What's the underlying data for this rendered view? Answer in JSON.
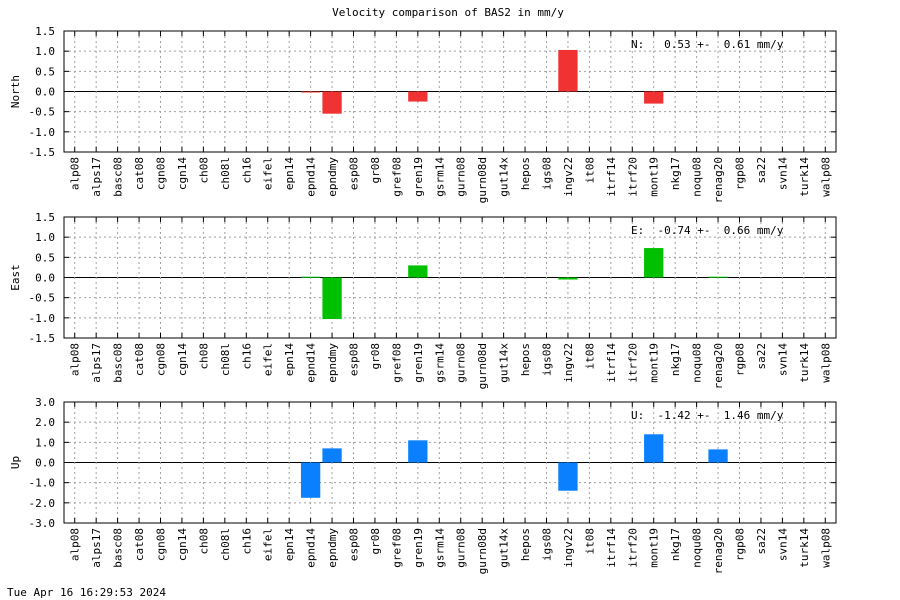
{
  "title": "Velocity comparison of BAS2 in mm/y",
  "footer": "Tue Apr 16 16:29:53 2024",
  "chart_data": [
    {
      "type": "bar",
      "ylabel": "North",
      "color": "#f03232",
      "categories": [
        "alp08",
        "alps17",
        "basc08",
        "cat08",
        "cgn08",
        "cgn14",
        "ch08",
        "ch08l",
        "ch16",
        "eifel",
        "epn14",
        "epnd14",
        "epndmy",
        "esp08",
        "gr08",
        "gref08",
        "gren19",
        "gsrm14",
        "gurn08",
        "gurn08d",
        "gut14x",
        "hepos",
        "igs08",
        "ingv22",
        "it08",
        "itrf14",
        "itrf20",
        "mont19",
        "nkg17",
        "noqu08",
        "renag20",
        "rgp08",
        "sa22",
        "svn14",
        "turk14",
        "walp08"
      ],
      "values": [
        null,
        null,
        null,
        null,
        null,
        null,
        null,
        null,
        null,
        null,
        null,
        -0.02,
        -0.55,
        null,
        null,
        null,
        -0.25,
        null,
        null,
        null,
        null,
        null,
        null,
        1.03,
        null,
        null,
        null,
        -0.3,
        null,
        null,
        null,
        null,
        null,
        null,
        null,
        null
      ],
      "ylim": [
        -1.5,
        1.5
      ],
      "yticks": [
        "1.5",
        "1.0",
        "0.5",
        "0.0",
        "-0.5",
        "-1.0",
        "-1.5"
      ],
      "annotation": "N:   0.53 +-  0.61 mm/y",
      "grid": true
    },
    {
      "type": "bar",
      "ylabel": "East",
      "color": "#00c000",
      "categories": [
        "alp08",
        "alps17",
        "basc08",
        "cat08",
        "cgn08",
        "cgn14",
        "ch08",
        "ch08l",
        "ch16",
        "eifel",
        "epn14",
        "epnd14",
        "epndmy",
        "esp08",
        "gr08",
        "gref08",
        "gren19",
        "gsrm14",
        "gurn08",
        "gurn08d",
        "gut14x",
        "hepos",
        "igs08",
        "ingv22",
        "it08",
        "itrf14",
        "itrf20",
        "mont19",
        "nkg17",
        "noqu08",
        "renag20",
        "rgp08",
        "sa22",
        "svn14",
        "turk14",
        "walp08"
      ],
      "values": [
        null,
        null,
        null,
        null,
        null,
        null,
        null,
        null,
        null,
        null,
        null,
        0.02,
        -1.03,
        null,
        null,
        null,
        0.3,
        null,
        null,
        null,
        null,
        null,
        null,
        -0.05,
        null,
        null,
        null,
        0.73,
        null,
        null,
        0.02,
        null,
        null,
        null,
        null,
        null
      ],
      "ylim": [
        -1.5,
        1.5
      ],
      "yticks": [
        "1.5",
        "1.0",
        "0.5",
        "0.0",
        "-0.5",
        "-1.0",
        "-1.5"
      ],
      "annotation": "E:  -0.74 +-  0.66 mm/y",
      "grid": true
    },
    {
      "type": "bar",
      "ylabel": "Up",
      "color": "#0a80ff",
      "categories": [
        "alp08",
        "alps17",
        "basc08",
        "cat08",
        "cgn08",
        "cgn14",
        "ch08",
        "ch08l",
        "ch16",
        "eifel",
        "epn14",
        "epnd14",
        "epndmy",
        "esp08",
        "gr08",
        "gref08",
        "gren19",
        "gsrm14",
        "gurn08",
        "gurn08d",
        "gut14x",
        "hepos",
        "igs08",
        "ingv22",
        "it08",
        "itrf14",
        "itrf20",
        "mont19",
        "nkg17",
        "noqu08",
        "renag20",
        "rgp08",
        "sa22",
        "svn14",
        "turk14",
        "walp08"
      ],
      "values": [
        null,
        null,
        null,
        null,
        null,
        null,
        null,
        null,
        null,
        null,
        null,
        -1.75,
        0.7,
        null,
        null,
        null,
        1.1,
        null,
        null,
        null,
        null,
        null,
        null,
        -1.4,
        null,
        null,
        null,
        1.4,
        null,
        null,
        0.65,
        null,
        null,
        null,
        null,
        null
      ],
      "ylim": [
        -3.0,
        3.0
      ],
      "yticks": [
        "3.0",
        "2.0",
        "1.0",
        "0.0",
        "-1.0",
        "-2.0",
        "-3.0"
      ],
      "annotation": "U:  -1.42 +-  1.46 mm/y",
      "grid": true
    }
  ]
}
